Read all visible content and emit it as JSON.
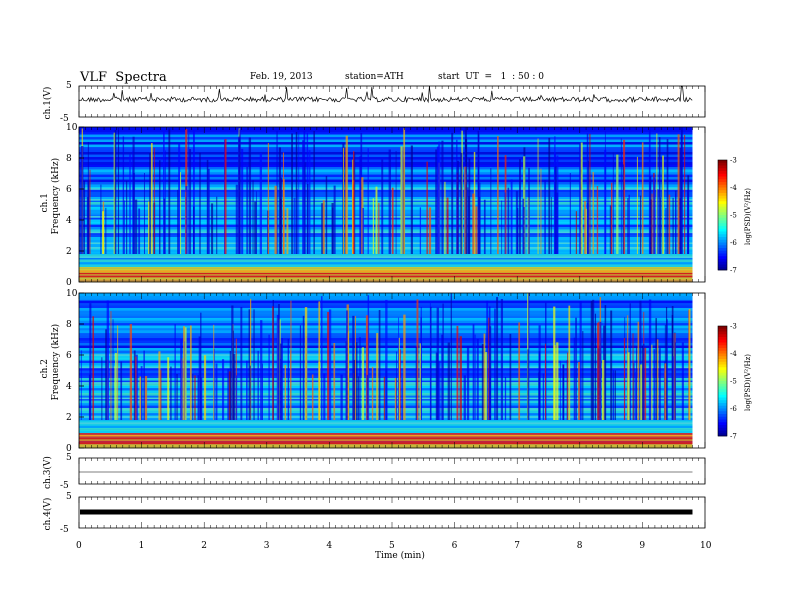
{
  "header": {
    "title": "VLF  Spectra",
    "date": "Feb. 19, 2013",
    "station": "station=ATH",
    "start": "start  UT  =   1  : 50 : 0"
  },
  "chart_data": {
    "type": "heatmap",
    "xlabel": "Time  (min)",
    "xlim": [
      0,
      10
    ],
    "xticks": [
      "0",
      "1",
      "2",
      "3",
      "4",
      "5",
      "6",
      "7",
      "8",
      "9",
      "10"
    ],
    "data_end_min": 9.8,
    "panels": [
      {
        "id": "ch1-wave",
        "kind": "waveform",
        "ylabel": "ch.1(V)",
        "ylim": [
          -5,
          5
        ],
        "yticks": [
          "5",
          "-5"
        ],
        "amplitude": "large"
      },
      {
        "id": "ch1-spec",
        "kind": "spectrogram",
        "ylabel_top": "ch.1",
        "ylabel": "Frequency  (kHz)",
        "ylim": [
          0,
          10
        ],
        "yticks": [
          "0",
          "2",
          "4",
          "6",
          "8",
          "10"
        ],
        "notable_lines_khz": [
          0.35,
          0.55,
          0.7,
          1.6,
          2.2,
          2.5,
          3.2,
          4.2,
          5.3,
          6.0
        ],
        "colorbar": {
          "label": "log(PSD)(V²/Hz)",
          "range": [
            -7,
            -3
          ],
          "ticks": [
            "-3",
            "-4",
            "-5",
            "-6",
            "-7"
          ]
        }
      },
      {
        "id": "ch2-spec",
        "kind": "spectrogram",
        "ylabel_top": "ch.2",
        "ylabel": "Frequency  (kHz)",
        "ylim": [
          0,
          10
        ],
        "yticks": [
          "0",
          "2",
          "4",
          "6",
          "8",
          "10"
        ],
        "notable_lines_khz": [
          0.3,
          0.6,
          0.8,
          1.6,
          2.0,
          2.5,
          3.2,
          4.2,
          5.2,
          6.0
        ],
        "colorbar": {
          "label": "log(PSD)(V²/Hz)",
          "range": [
            -7,
            -3
          ],
          "ticks": [
            "-3",
            "-4",
            "-5",
            "-6",
            "-7"
          ]
        }
      },
      {
        "id": "ch3-wave",
        "kind": "waveform",
        "ylabel": "ch.3(V)",
        "ylim": [
          -5,
          5
        ],
        "yticks": [
          "5",
          "-5"
        ],
        "amplitude": "flat"
      },
      {
        "id": "ch4-wave",
        "kind": "waveform",
        "ylabel": "ch.4(V)",
        "ylim": [
          -5,
          5
        ],
        "yticks": [
          "5",
          "-5"
        ],
        "amplitude": "thick"
      }
    ]
  }
}
